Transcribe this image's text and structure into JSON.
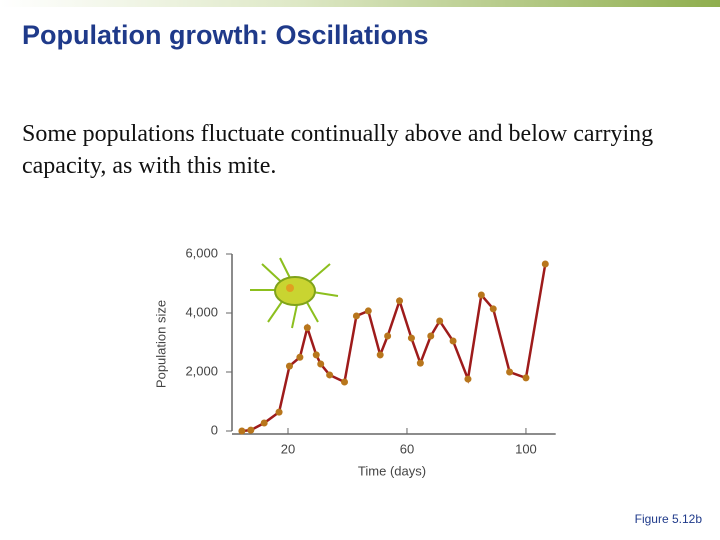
{
  "slide_title": "Population growth: Oscillations",
  "body_text": "Some populations fluctuate continually above and below carrying capacity, as with this mite.",
  "figure_caption": "Figure 5.12b",
  "chart_data": {
    "type": "line",
    "x_label": "Time (days)",
    "y_label": "Population size",
    "x": [
      4.5,
      7.5,
      12,
      17,
      20.5,
      24,
      26.5,
      29.5,
      31,
      34,
      39,
      43,
      47,
      51,
      53.5,
      57.5,
      61.5,
      64.5,
      68,
      71,
      75.5,
      80.5,
      85,
      89,
      94.5,
      100,
      106.5
    ],
    "series": [
      {
        "color": "#9e1b1b",
        "marker_color": "#b8761c",
        "values": [
          0,
          30,
          270,
          640,
          2200,
          2500,
          3500,
          2580,
          2270,
          1900,
          1660,
          3900,
          4070,
          2580,
          3220,
          4410,
          3150,
          2300,
          3220,
          3730,
          3050,
          1760,
          4610,
          4140,
          2000,
          1800,
          5660
        ]
      }
    ],
    "xlim": [
      0,
      110
    ],
    "xticks": [
      20,
      60,
      100
    ],
    "ylim": [
      0,
      6000
    ],
    "yticks": [
      0,
      {
        "value": 2000,
        "label": "2,000"
      },
      {
        "value": 4000,
        "label": "4,000"
      },
      {
        "value": 6000,
        "label": "6,000"
      }
    ],
    "grid": false
  }
}
